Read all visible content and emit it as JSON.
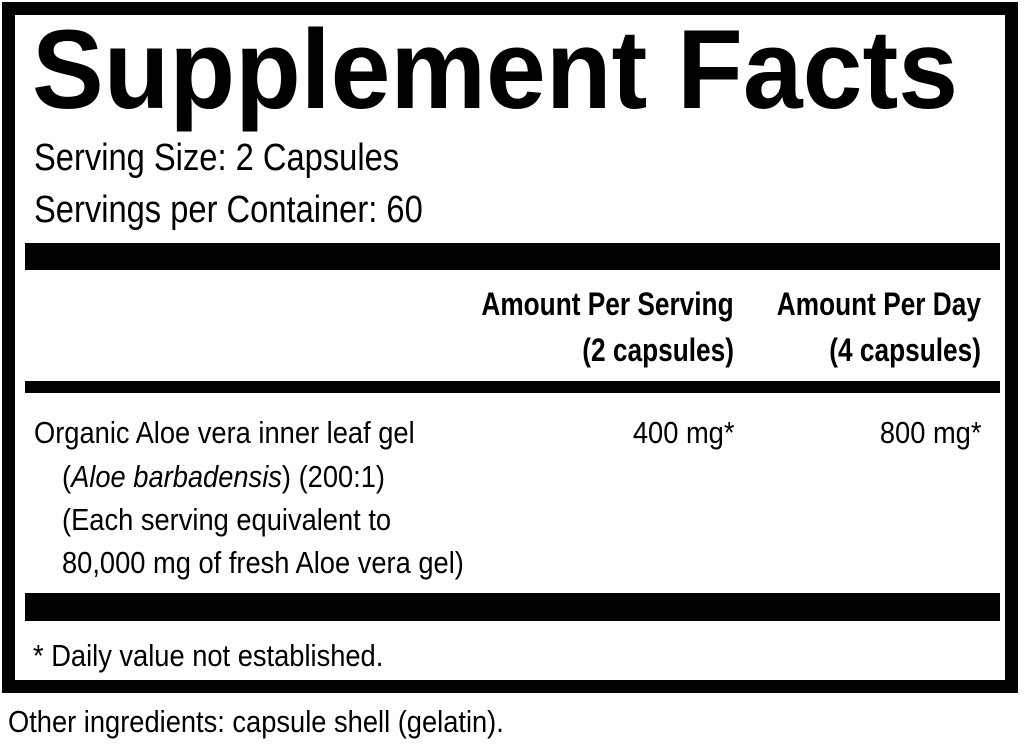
{
  "title": "Supplement Facts",
  "serving_size": "Serving Size: 2 Capsules",
  "servings_per_container": "Servings per Container: 60",
  "columns": [
    {
      "line1": "Amount Per Serving",
      "line2": "(2 capsules)"
    },
    {
      "line1": "Amount Per Day",
      "line2": "(4 capsules)"
    }
  ],
  "ingredients": [
    {
      "name_line1": "Organic Aloe vera inner leaf gel",
      "name_line2_open": "(",
      "name_line2_italic": "Aloe barbadensis",
      "name_line2_rest": ") (200:1)",
      "name_line3": "(Each serving equivalent to",
      "name_line4": "80,000 mg of fresh Aloe vera gel)",
      "per_serving": "400 mg*",
      "per_day": "800 mg*"
    }
  ],
  "footnote": "* Daily value not established.",
  "other_ingredients": "Other ingredients: capsule shell (gelatin)."
}
